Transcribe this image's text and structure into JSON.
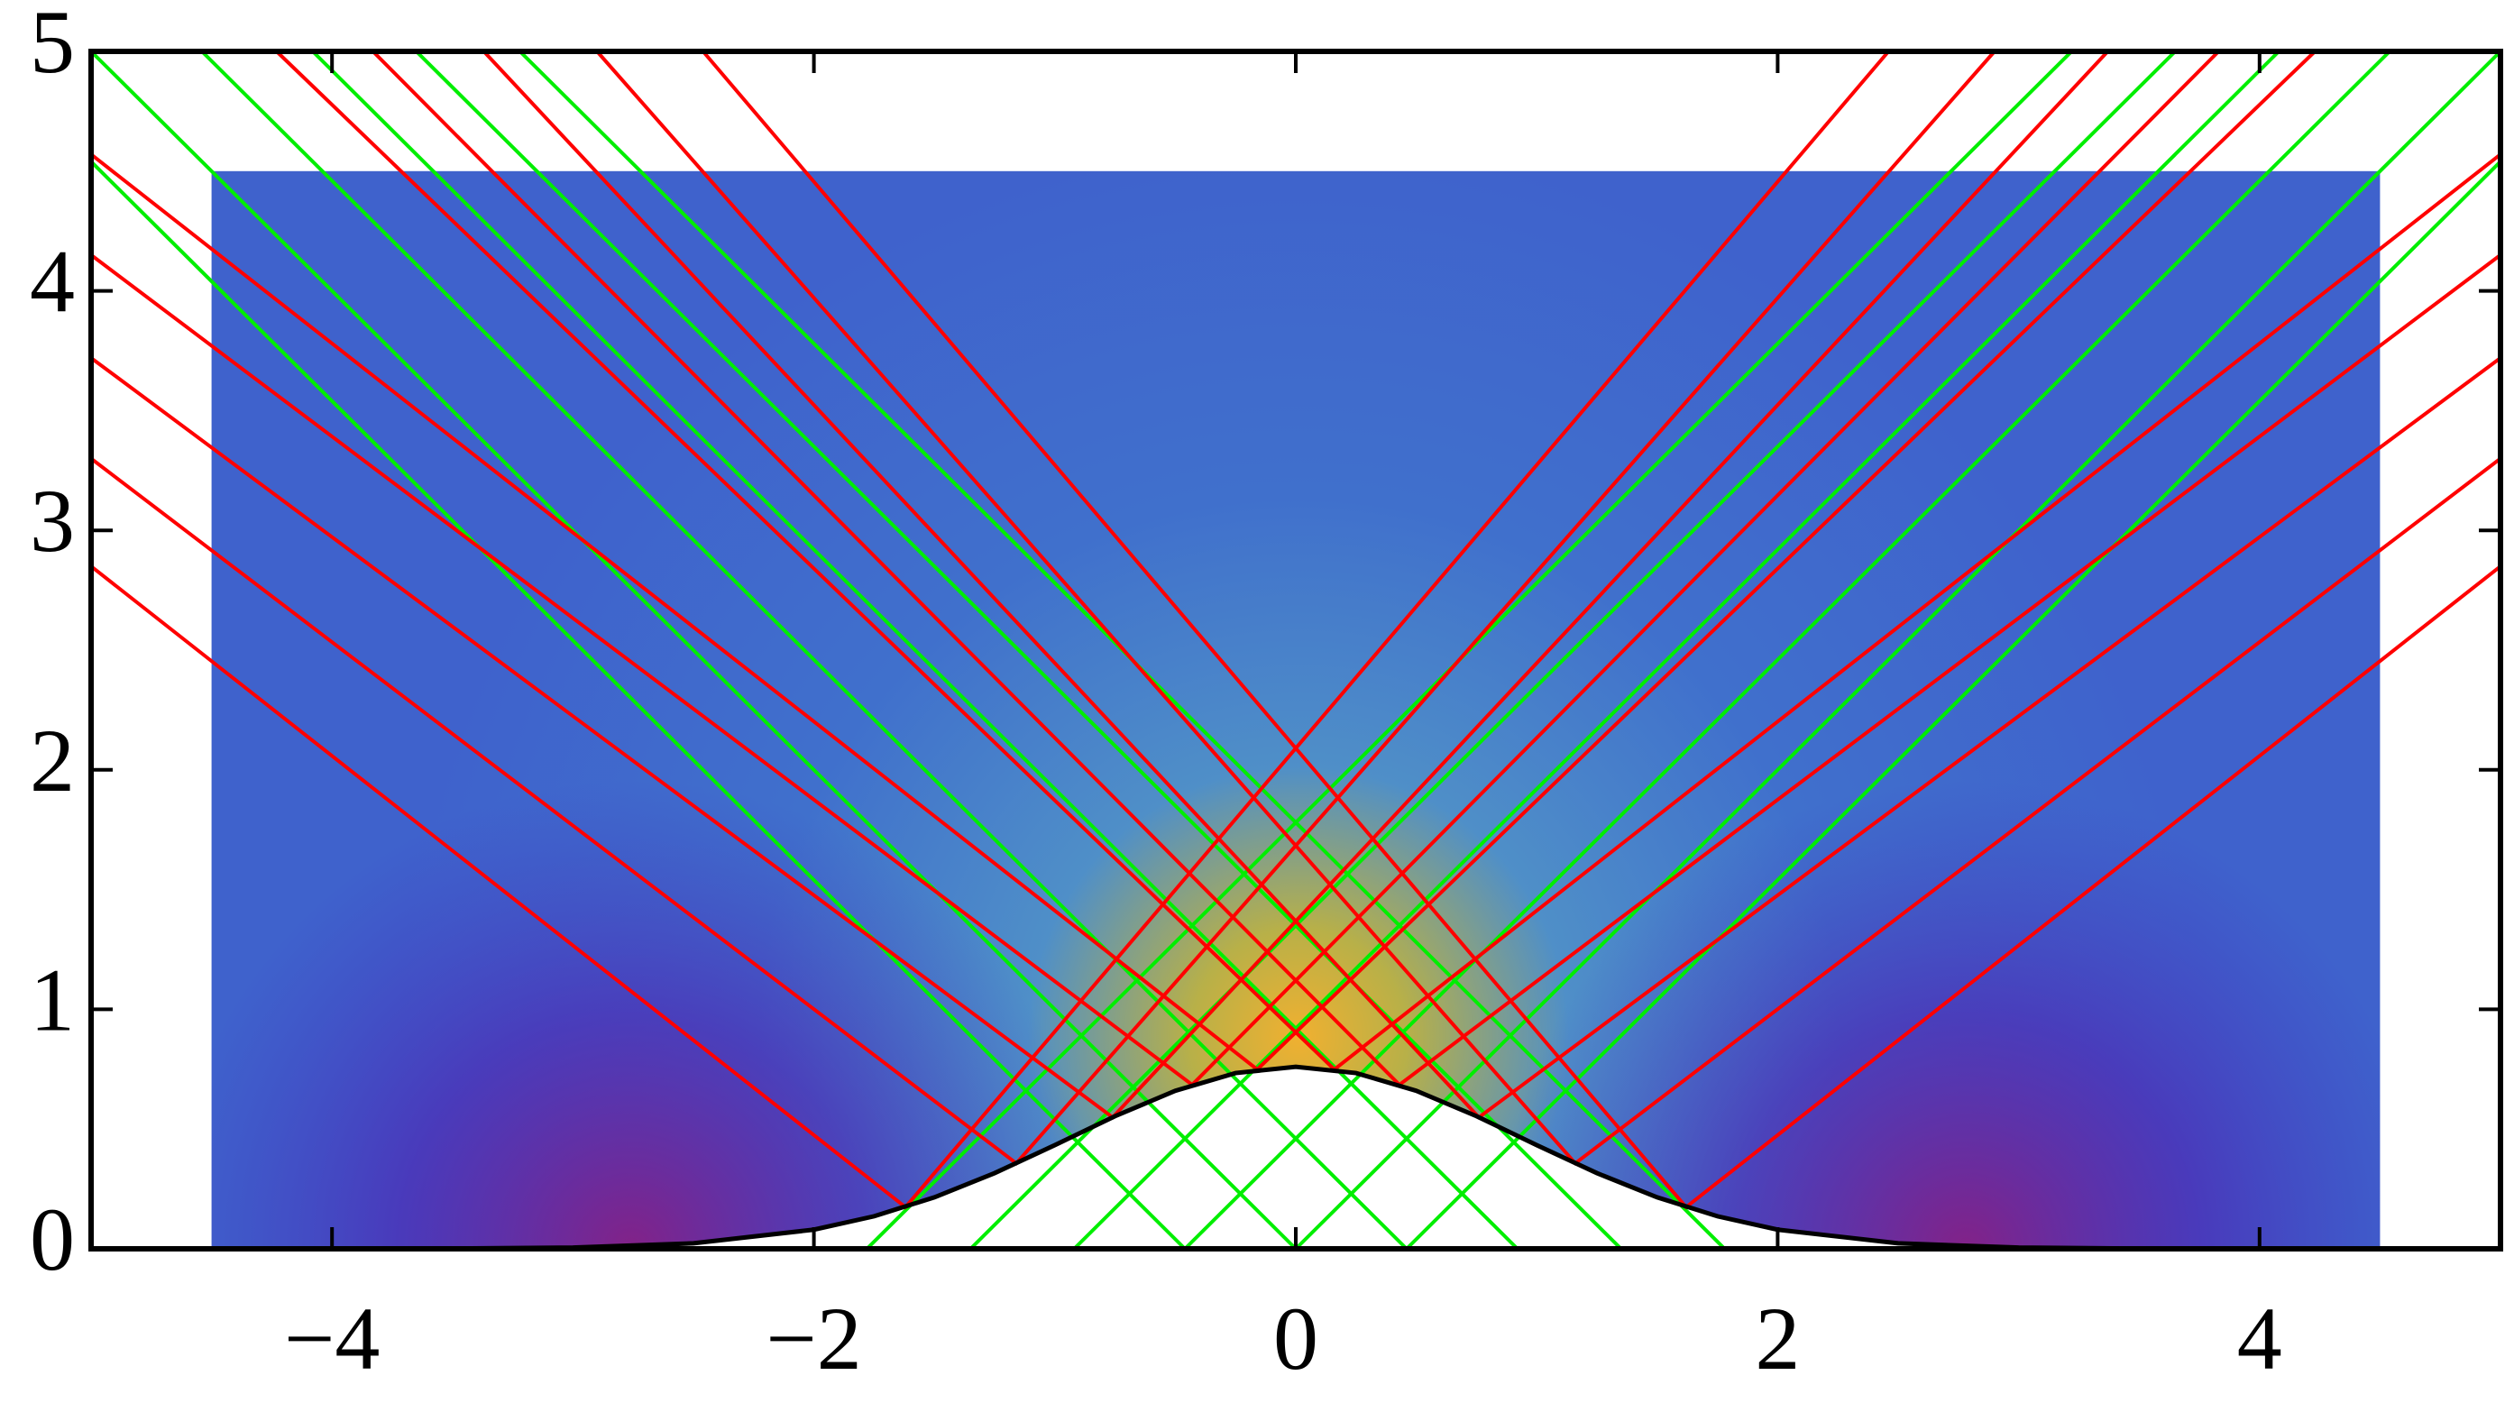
{
  "chart_data": {
    "type": "ray-diagram",
    "xlim": [
      -5,
      5
    ],
    "ylim": [
      0,
      5
    ],
    "xticks": [
      {
        "value": -4,
        "label": "−4"
      },
      {
        "value": -2,
        "label": "−2"
      },
      0,
      2,
      4
    ],
    "yticks": [
      0,
      1,
      2,
      3,
      4,
      5
    ],
    "field": {
      "xlim": [
        -4.5,
        4.5
      ],
      "ylim": [
        0,
        4.5
      ]
    },
    "surface": {
      "color": "#000000",
      "x": [
        -4,
        -3.5,
        -3,
        -2.5,
        -2,
        -1.75,
        -1.5,
        -1.25,
        -1,
        -0.75,
        -0.5,
        -0.25,
        0,
        0.25,
        0.5,
        0.75,
        1,
        1.25,
        1.5,
        1.75,
        2,
        2.5,
        3,
        3.5,
        4
      ],
      "y": [
        0,
        0.001,
        0.005,
        0.023,
        0.08,
        0.136,
        0.215,
        0.316,
        0.433,
        0.554,
        0.66,
        0.734,
        0.76,
        0.734,
        0.66,
        0.554,
        0.433,
        0.316,
        0.215,
        0.136,
        0.08,
        0.023,
        0.005,
        0.001,
        0
      ]
    },
    "series": [
      {
        "color": "#00ee00",
        "x": [
          3.22,
          -1.78
        ],
        "y": [
          5,
          0
        ]
      },
      {
        "color": "#00ee00",
        "x": [
          3.65,
          -1.35
        ],
        "y": [
          5,
          0
        ]
      },
      {
        "color": "#00ee00",
        "x": [
          4.08,
          -0.92
        ],
        "y": [
          5,
          0
        ]
      },
      {
        "color": "#00ee00",
        "x": [
          4.54,
          -0.46
        ],
        "y": [
          5,
          0
        ]
      },
      {
        "color": "#00ee00",
        "x": [
          5,
          0
        ],
        "y": [
          5,
          0
        ]
      },
      {
        "color": "#00ee00",
        "x": [
          5,
          0.46
        ],
        "y": [
          4.54,
          0
        ]
      },
      {
        "color": "#00ee00",
        "x": [
          -3.22,
          1.78
        ],
        "y": [
          5,
          0
        ]
      },
      {
        "color": "#00ee00",
        "x": [
          -3.65,
          1.35
        ],
        "y": [
          5,
          0
        ]
      },
      {
        "color": "#00ee00",
        "x": [
          -4.08,
          0.92
        ],
        "y": [
          5,
          0
        ]
      },
      {
        "color": "#00ee00",
        "x": [
          -4.54,
          0.46
        ],
        "y": [
          5,
          0
        ]
      },
      {
        "color": "#00ee00",
        "x": [
          -5,
          0
        ],
        "y": [
          5,
          0
        ]
      },
      {
        "color": "#00ee00",
        "x": [
          -5,
          -0.46
        ],
        "y": [
          4.54,
          0
        ]
      },
      {
        "color": "#ff0000",
        "x": [
          -5,
          -1.62,
          2.46
        ],
        "y": [
          2.85,
          0.174,
          5
        ]
      },
      {
        "color": "#ff0000",
        "x": [
          -5,
          -1.16,
          2.9
        ],
        "y": [
          3.3,
          0.357,
          5
        ]
      },
      {
        "color": "#ff0000",
        "x": [
          -5,
          -0.76,
          3.37
        ],
        "y": [
          3.72,
          0.549,
          5
        ]
      },
      {
        "color": "#ff0000",
        "x": [
          -5,
          -0.43,
          3.83
        ],
        "y": [
          4.15,
          0.685,
          5
        ]
      },
      {
        "color": "#ff0000",
        "x": [
          -5,
          -0.16,
          4.23
        ],
        "y": [
          4.57,
          0.749,
          5
        ]
      },
      {
        "color": "#ff0000",
        "x": [
          5,
          1.62,
          -2.46
        ],
        "y": [
          2.85,
          0.174,
          5
        ]
      },
      {
        "color": "#ff0000",
        "x": [
          5,
          1.16,
          -2.9
        ],
        "y": [
          3.3,
          0.357,
          5
        ]
      },
      {
        "color": "#ff0000",
        "x": [
          5,
          0.76,
          -3.37
        ],
        "y": [
          3.72,
          0.549,
          5
        ]
      },
      {
        "color": "#ff0000",
        "x": [
          5,
          0.43,
          -3.83
        ],
        "y": [
          4.15,
          0.685,
          5
        ]
      },
      {
        "color": "#ff0000",
        "x": [
          5,
          0.16,
          -4.23
        ],
        "y": [
          4.57,
          0.749,
          5
        ]
      }
    ]
  }
}
